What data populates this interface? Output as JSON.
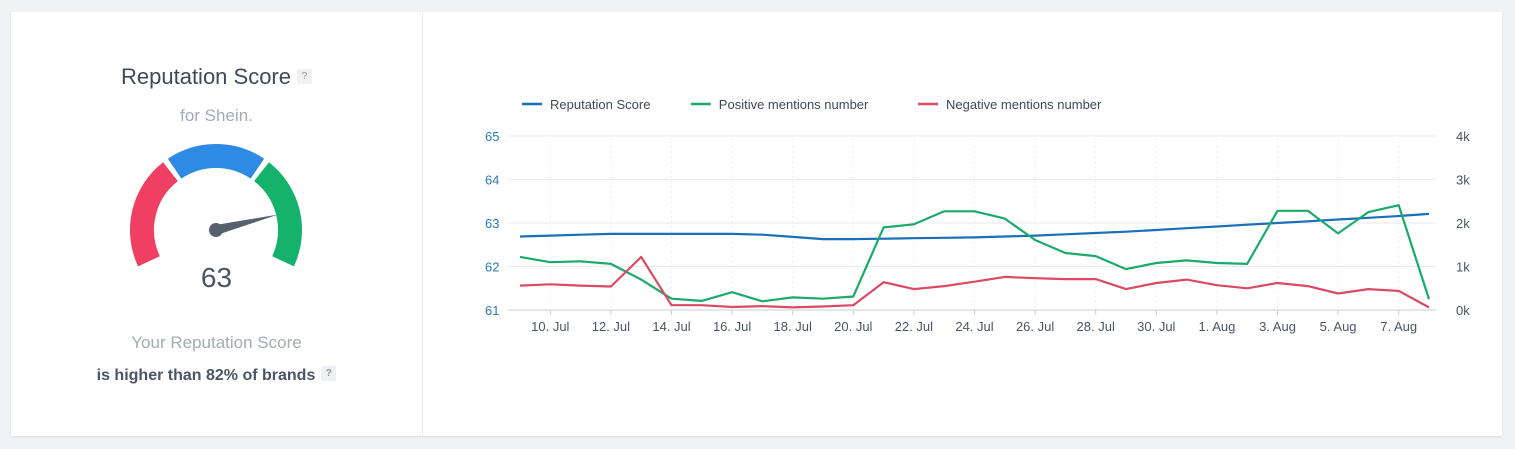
{
  "score_panel": {
    "title": "Reputation Score",
    "help_glyph": "?",
    "subtitle": "for Shein.",
    "score": "63",
    "gauge_value": 63,
    "gauge_colors": {
      "low": "#ef4063",
      "mid": "#2d8ae5",
      "high": "#14b26b",
      "needle": "#56606e"
    },
    "description_line1": "Your Reputation Score",
    "description_line2": "is higher than 82% of brands"
  },
  "chart_data": {
    "type": "line",
    "title": "",
    "legend_position": "top-left",
    "x_tick_labels": [
      "10. Jul",
      "12. Jul",
      "14. Jul",
      "16. Jul",
      "18. Jul",
      "20. Jul",
      "22. Jul",
      "24. Jul",
      "26. Jul",
      "28. Jul",
      "30. Jul",
      "1. Aug",
      "3. Aug",
      "5. Aug",
      "7. Aug"
    ],
    "x": [
      "9 Jul",
      "10 Jul",
      "11 Jul",
      "12 Jul",
      "13 Jul",
      "14 Jul",
      "15 Jul",
      "16 Jul",
      "17 Jul",
      "18 Jul",
      "19 Jul",
      "20 Jul",
      "21 Jul",
      "22 Jul",
      "23 Jul",
      "24 Jul",
      "25 Jul",
      "26 Jul",
      "27 Jul",
      "28 Jul",
      "29 Jul",
      "30 Jul",
      "31 Jul",
      "1 Aug",
      "2 Aug",
      "3 Aug",
      "4 Aug",
      "5 Aug",
      "6 Aug",
      "7 Aug",
      "8 Aug"
    ],
    "y_left": {
      "ticks": [
        "61",
        "62",
        "63",
        "64",
        "65"
      ],
      "range": [
        61,
        65
      ],
      "color": "#2b7bb9"
    },
    "y_right": {
      "ticks": [
        "0k",
        "1k",
        "2k",
        "3k",
        "4k"
      ],
      "range": [
        0,
        4000
      ]
    },
    "grid": true,
    "series": [
      {
        "name": "Reputation Score",
        "axis": "left",
        "color": "#1a6fb8",
        "values": [
          62.69,
          62.71,
          62.73,
          62.75,
          62.75,
          62.75,
          62.75,
          62.75,
          62.73,
          62.68,
          62.63,
          62.63,
          62.64,
          62.65,
          62.66,
          62.67,
          62.69,
          62.71,
          62.74,
          62.77,
          62.8,
          62.84,
          62.88,
          62.92,
          62.96,
          63.0,
          63.04,
          63.08,
          63.12,
          63.16,
          63.21
        ]
      },
      {
        "name": "Positive mentions number",
        "axis": "right",
        "color": "#1aaa6c",
        "values": [
          1220,
          1100,
          1120,
          1060,
          700,
          260,
          210,
          410,
          200,
          290,
          260,
          310,
          1900,
          1970,
          2270,
          2270,
          2100,
          1610,
          1310,
          1240,
          940,
          1080,
          1140,
          1080,
          1060,
          2280,
          2280,
          1760,
          2250,
          2410,
          250
        ]
      },
      {
        "name": "Negative mentions number",
        "axis": "right",
        "color": "#db4a63",
        "values": [
          560,
          590,
          560,
          540,
          1220,
          110,
          110,
          70,
          90,
          60,
          80,
          110,
          640,
          480,
          550,
          650,
          760,
          730,
          710,
          710,
          480,
          620,
          700,
          570,
          500,
          620,
          550,
          380,
          480,
          440,
          60
        ]
      }
    ]
  }
}
